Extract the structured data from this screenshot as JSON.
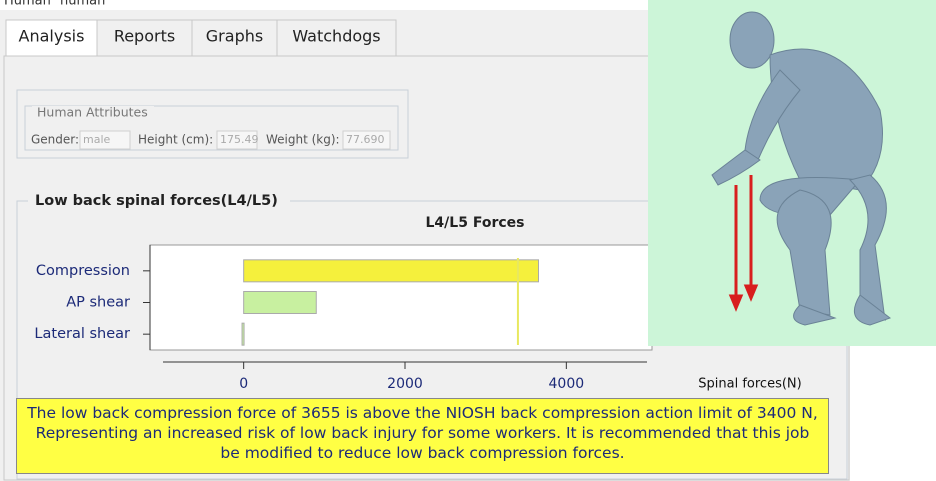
{
  "window_title": [
    "Human",
    "human"
  ],
  "tabs": [
    "Analysis",
    "Reports",
    "Graphs",
    "Watchdogs"
  ],
  "attributes": {
    "title": "Human Attributes",
    "fields": [
      {
        "label": "Gender:",
        "value": "male"
      },
      {
        "label": "Height (cm):",
        "value": "175.49"
      },
      {
        "label": "Weight (kg):",
        "value": "77.690"
      }
    ]
  },
  "section_title": "Low back spinal forces(L4/L5)",
  "chart_data": {
    "type": "bar",
    "orientation": "horizontal",
    "title": "L4/L5 Forces",
    "x_label": "Spinal forces(N)",
    "categories": [
      "Compression",
      "AP shear",
      "Lateral shear"
    ],
    "values": [
      3655,
      900,
      -20
    ],
    "colors": [
      "#f5f03c",
      "#c8f0a0",
      "#c8f0a0"
    ],
    "limit": 3400,
    "limit_color": "#e8e860",
    "xlim": [
      -1000,
      5000
    ],
    "xticks": [
      0,
      2000,
      4000
    ]
  },
  "note": "The low back compression force of 3655 is above the NIOSH back compression action limit of 3400 N, Representing an increased risk of low back injury for some workers. It is recommended that this job be modified to reduce low back compression forces."
}
